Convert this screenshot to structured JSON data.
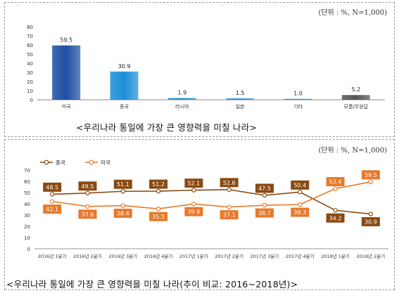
{
  "chart_data": [
    {
      "type": "bar",
      "unit_note": "(단위 : %, N=1,000)",
      "caption": "<우리나라 통일에 가장 큰 영향력을 미칠 나라>",
      "categories": [
        "미국",
        "중국",
        "러시아",
        "일본",
        "기타",
        "모름/무응답"
      ],
      "values": [
        59.5,
        30.9,
        1.9,
        1.5,
        1.0,
        5.2
      ],
      "value_labels": [
        "59.5",
        "30.9",
        "1.9",
        "1.5",
        "1.0",
        "5.2"
      ],
      "ylim": [
        0,
        80
      ],
      "yticks": [
        "0",
        "10",
        "20",
        "30",
        "40",
        "50",
        "60",
        "70",
        "80"
      ],
      "colors": [
        "#1f4fa3",
        "#1b8fd8",
        "#1b8fd8",
        "#1b8fd8",
        "#1b8fd8",
        "#555555"
      ]
    },
    {
      "type": "line",
      "unit_note": "(단위 : %, N=1,000)",
      "caption": "<우리나라 통일에 가장 큰 영향력을 미칠 나라(추이 비교: 2016~2018년)>",
      "categories": [
        "2016년 1분기",
        "2016년 2분기",
        "2016년 3분기",
        "2016년 4분기",
        "2017년 1분기",
        "2017년 2분기",
        "2017년 3분기",
        "2017년 4분기",
        "2018년 1분기",
        "2018년 2분기"
      ],
      "ylim": [
        0,
        70
      ],
      "yticks": [
        "0",
        "10",
        "20",
        "30",
        "40",
        "50",
        "60",
        "70"
      ],
      "legend_position": "top-left",
      "series": [
        {
          "name": "중국",
          "color": "#8a4a12",
          "values": [
            48.5,
            49.5,
            51.1,
            51.2,
            52.1,
            52.6,
            47.5,
            50.4,
            34.2,
            30.9
          ],
          "labels": [
            "48.5",
            "49.5",
            "51.1",
            "51.2",
            "52.1",
            "52.6",
            "47.5",
            "50.4",
            "34.2",
            "30.9"
          ]
        },
        {
          "name": "미국",
          "color": "#e8792a",
          "values": [
            42.1,
            37.6,
            38.4,
            35.5,
            39.9,
            37.1,
            38.7,
            39.3,
            53.4,
            59.5
          ],
          "labels": [
            "42.1",
            "37.6",
            "38.4",
            "35.5",
            "39.9",
            "37.1",
            "38.7",
            "39.3",
            "53.4",
            "59.5"
          ]
        }
      ]
    }
  ]
}
